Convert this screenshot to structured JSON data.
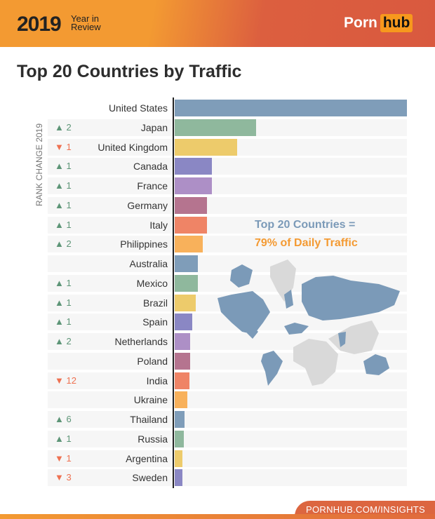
{
  "header": {
    "year": "2019",
    "subtitle_line1": "Year in",
    "subtitle_line2": "Review",
    "logo_left": "Porn",
    "logo_right": "hub"
  },
  "title": "Top 20 Countries by Traffic",
  "annotation": {
    "line1": "Top 20 Countries =",
    "line2": "79% of Daily Traffic"
  },
  "footer": {
    "link": "PORNHUB.COM/INSIGHTS"
  },
  "colors": {
    "blue": "#7f9db9",
    "green": "#8fb89d",
    "yellow": "#edcb6b",
    "indigo": "#8a87c4",
    "lilac": "#ad8fc6",
    "mauve": "#b5748f",
    "coral": "#ef8466",
    "orange": "#f8b15b",
    "up": "#5d9577",
    "down": "#ee7151",
    "map_highlight": "#7b9ab8",
    "map_other": "#d9d9d9"
  },
  "chart_data": {
    "type": "bar",
    "orientation": "horizontal",
    "title": "Top 20 Countries by Traffic",
    "ylabel": "RANK CHANGE 2019",
    "value_note": "relative traffic, United States = 100 (bar lengths, no values printed)",
    "categories": [
      "United States",
      "Japan",
      "United Kingdom",
      "Canada",
      "France",
      "Germany",
      "Italy",
      "Philippines",
      "Australia",
      "Mexico",
      "Brazil",
      "Spain",
      "Netherlands",
      "Poland",
      "India",
      "Ukraine",
      "Thailand",
      "Russia",
      "Argentina",
      "Sweden"
    ],
    "values": [
      100,
      35,
      27,
      16,
      16,
      14,
      14,
      12,
      10,
      10,
      9,
      7.5,
      6.6,
      6.6,
      6.3,
      5.4,
      4.2,
      3.9,
      3.3,
      3.3
    ],
    "rank_change": [
      {
        "dir": "",
        "text": ""
      },
      {
        "dir": "up",
        "text": "2"
      },
      {
        "dir": "down",
        "text": "1"
      },
      {
        "dir": "up",
        "text": "1"
      },
      {
        "dir": "up",
        "text": "1"
      },
      {
        "dir": "up",
        "text": "1"
      },
      {
        "dir": "up",
        "text": "1"
      },
      {
        "dir": "up",
        "text": "2"
      },
      {
        "dir": "",
        "text": ""
      },
      {
        "dir": "up",
        "text": "1"
      },
      {
        "dir": "up",
        "text": "1"
      },
      {
        "dir": "up",
        "text": "1"
      },
      {
        "dir": "up",
        "text": "2"
      },
      {
        "dir": "",
        "text": ""
      },
      {
        "dir": "down",
        "text": "12"
      },
      {
        "dir": "",
        "text": ""
      },
      {
        "dir": "up",
        "text": "6"
      },
      {
        "dir": "up",
        "text": "1"
      },
      {
        "dir": "down",
        "text": "1"
      },
      {
        "dir": "down",
        "text": "3"
      }
    ],
    "bar_colors": [
      "#7f9db9",
      "#8fb89d",
      "#edcb6b",
      "#8a87c4",
      "#ad8fc6",
      "#b5748f",
      "#ef8466",
      "#f8b15b",
      "#7f9db9",
      "#8fb89d",
      "#edcb6b",
      "#8a87c4",
      "#ad8fc6",
      "#b5748f",
      "#ef8466",
      "#f8b15b",
      "#7f9db9",
      "#8fb89d",
      "#edcb6b",
      "#8a87c4"
    ]
  }
}
